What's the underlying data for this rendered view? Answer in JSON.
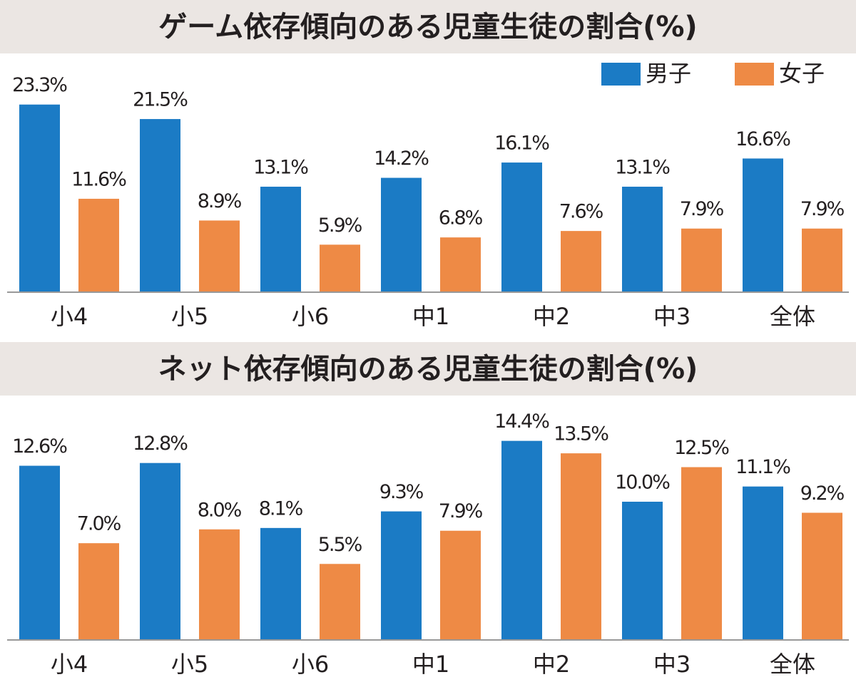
{
  "chart_data": [
    {
      "type": "bar",
      "title": "ゲーム依存傾向のある児童生徒の割合(%)",
      "categories": [
        "小4",
        "小5",
        "小6",
        "中1",
        "中2",
        "中3",
        "全体"
      ],
      "series": [
        {
          "name": "男子",
          "color": "#1b7bc5",
          "values": [
            23.3,
            21.5,
            13.1,
            14.2,
            16.1,
            13.1,
            16.6
          ],
          "value_labels": [
            "23.3%",
            "21.5%",
            "13.1%",
            "14.2%",
            "16.1%",
            "13.1%",
            "16.6%"
          ]
        },
        {
          "name": "女子",
          "color": "#ee8a45",
          "values": [
            11.6,
            8.9,
            5.9,
            6.8,
            7.6,
            7.9,
            7.9
          ],
          "value_labels": [
            "11.6%",
            "8.9%",
            "5.9%",
            "6.8%",
            "7.6%",
            "7.9%",
            "7.9%"
          ]
        }
      ],
      "legend": "top-right"
    },
    {
      "type": "bar",
      "title": "ネット依存傾向のある児童生徒の割合(%)",
      "categories": [
        "小4",
        "小5",
        "小6",
        "中1",
        "中2",
        "中3",
        "全体"
      ],
      "series": [
        {
          "color": "#1b7bc5",
          "values": [
            12.6,
            12.8,
            8.1,
            9.3,
            14.4,
            10.0,
            11.1
          ],
          "value_labels": [
            "12.6%",
            "12.8%",
            "8.1%",
            "9.3%",
            "14.4%",
            "10.0%",
            "11.1%"
          ]
        },
        {
          "color": "#ee8a45",
          "values": [
            7.0,
            8.0,
            5.5,
            7.9,
            13.5,
            12.5,
            9.2
          ],
          "value_labels": [
            "7.0%",
            "8.0%",
            "5.5%",
            "7.9%",
            "13.5%",
            "12.5%",
            "9.2%"
          ]
        }
      ]
    }
  ]
}
